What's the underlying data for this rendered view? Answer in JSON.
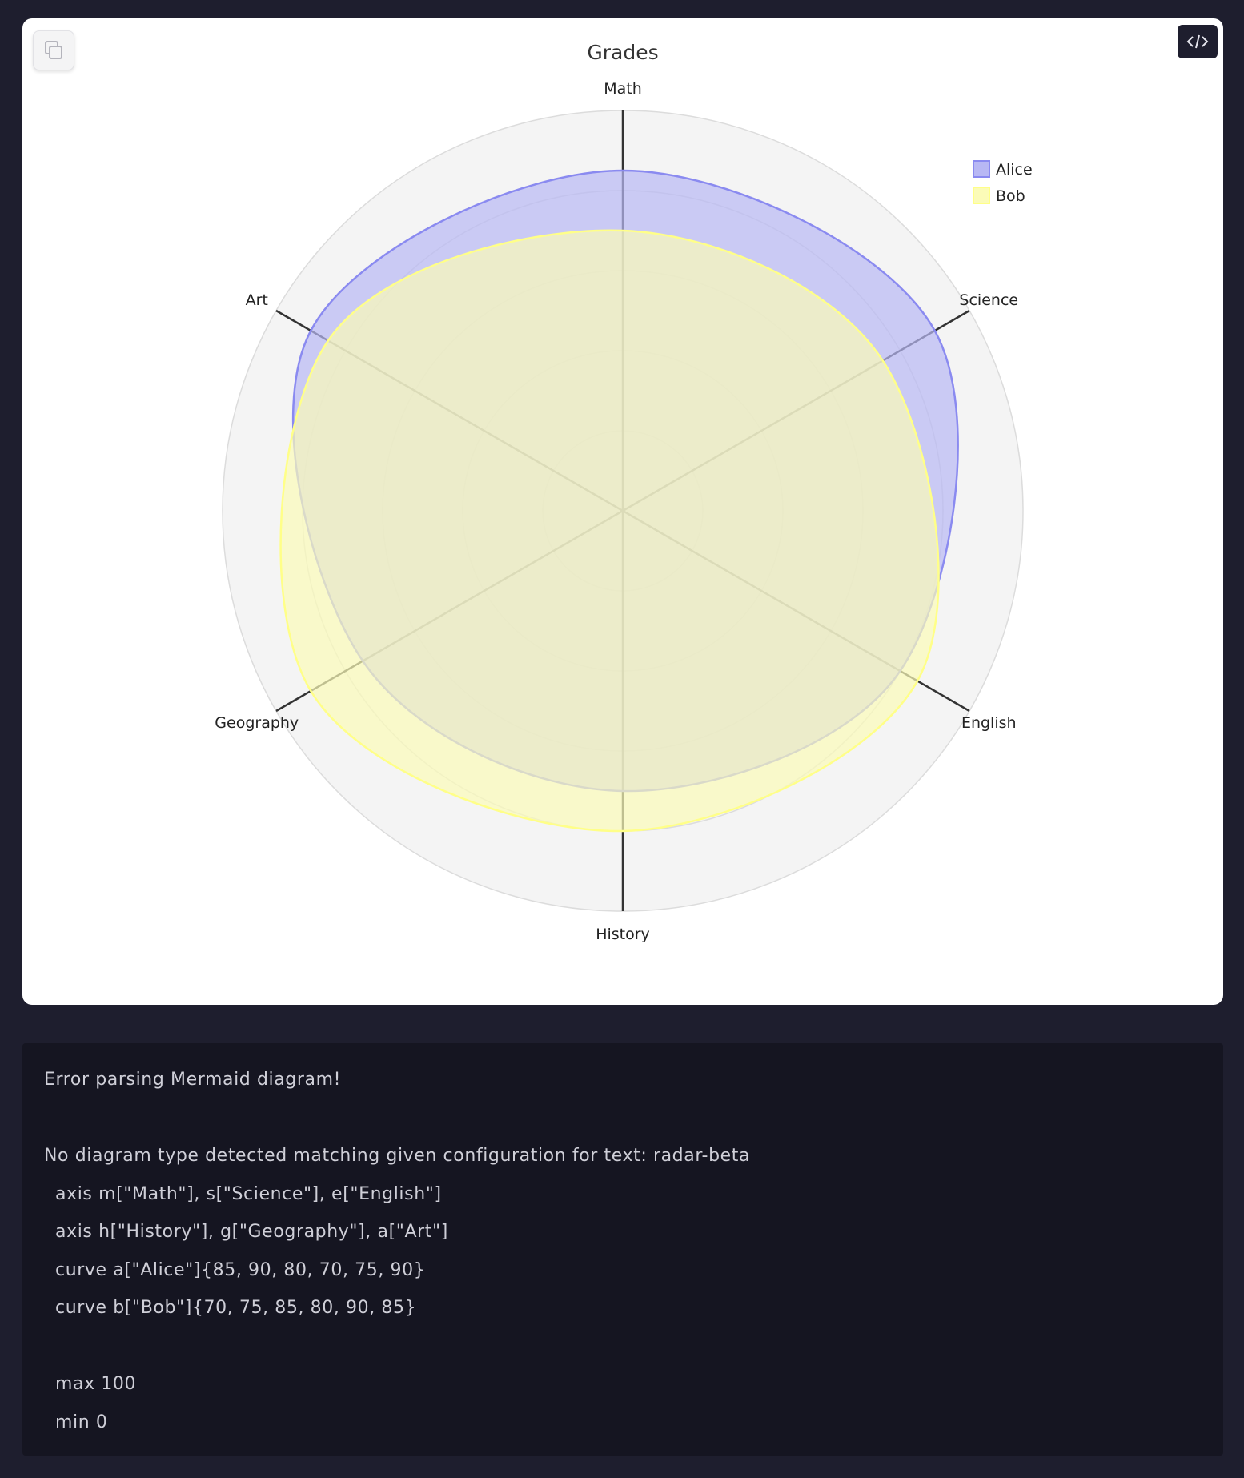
{
  "chart_data": {
    "type": "radar",
    "title": "Grades",
    "axes": [
      "Math",
      "Science",
      "English",
      "History",
      "Geography",
      "Art"
    ],
    "series": [
      {
        "name": "Alice",
        "values": [
          85,
          90,
          80,
          70,
          75,
          90
        ],
        "color": "#8a8af0",
        "fill": "#b8b8f4"
      },
      {
        "name": "Bob",
        "values": [
          70,
          75,
          85,
          80,
          90,
          85
        ],
        "color": "#ffff88",
        "fill": "#fbfbb8"
      }
    ],
    "min": 0,
    "max": 100,
    "grid_levels": 5,
    "legend_position": "top-right"
  },
  "toolbar": {
    "copy_icon": "copy-icon",
    "code_icon": "code-icon"
  },
  "error": {
    "lines": [
      "Error parsing Mermaid diagram!",
      "",
      "No diagram type detected matching given configuration for text: radar-beta",
      "axis m[\"Math\"], s[\"Science\"], e[\"English\"]",
      "axis h[\"History\"], g[\"Geography\"], a[\"Art\"]",
      "curve a[\"Alice\"]{85, 90, 80, 70, 75, 90}",
      "curve b[\"Bob\"]{70, 75, 85, 80, 90, 85}",
      "",
      "max 100",
      "min 0"
    ]
  }
}
